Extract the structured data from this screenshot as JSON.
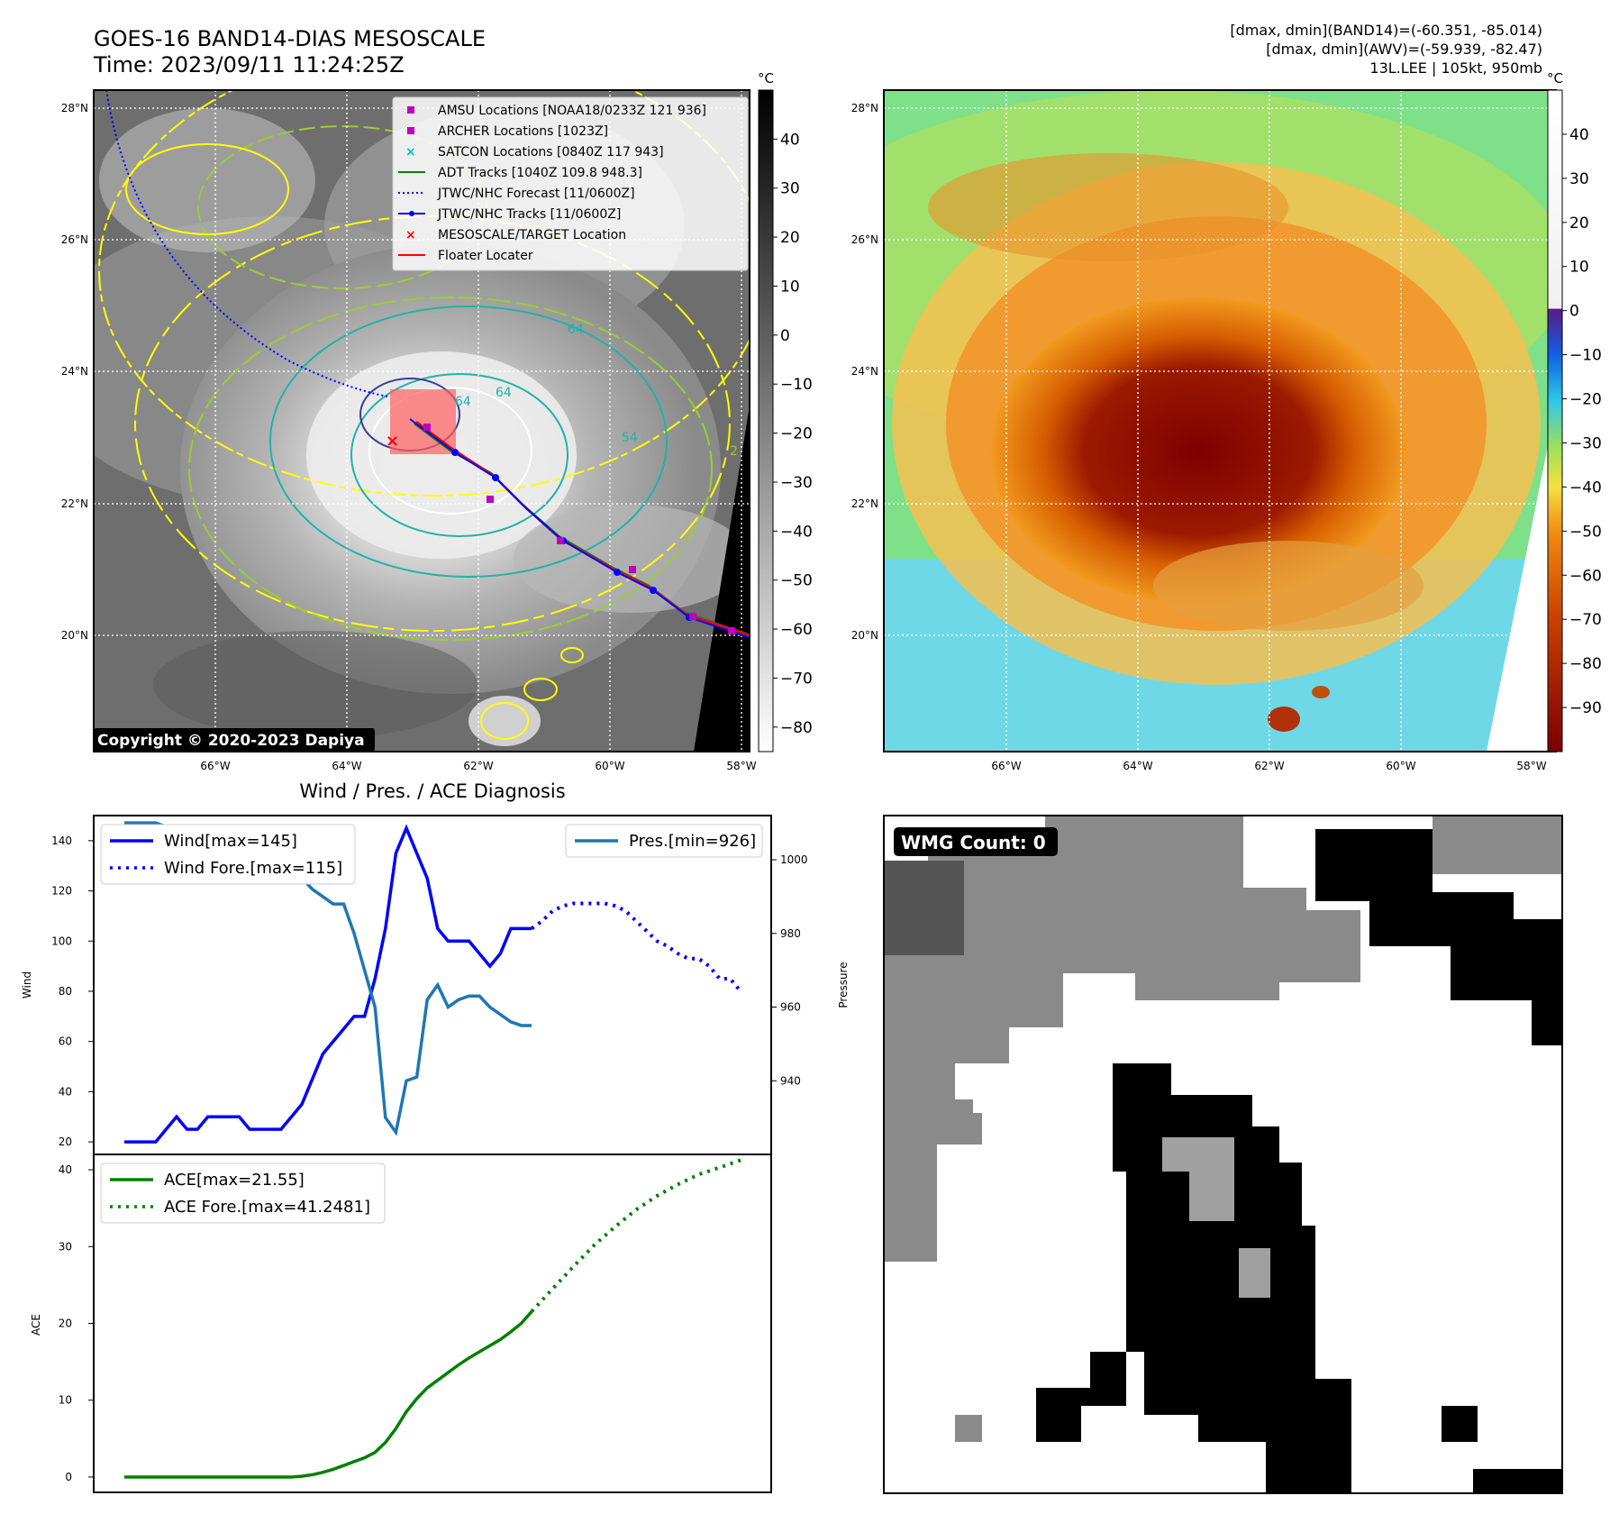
{
  "header": {
    "title_line1": "GOES-16 BAND14-DIAS MESOSCALE",
    "title_line2": "Time: 2023/09/11 11:24:25Z",
    "info_line1": "[dmax, dmin](BAND14)=(-60.351, -85.014)",
    "info_line2": "[dmax, dmin](AWV)=(-59.939, -82.47)",
    "info_line3": "13L.LEE | 105kt, 950mb"
  },
  "maps": {
    "lat_labels": [
      "28°N",
      "26°N",
      "24°N",
      "22°N",
      "20°N"
    ],
    "lon_labels": [
      "66°W",
      "64°W",
      "62°W",
      "60°W",
      "58°W"
    ],
    "copyright": "Copyright © 2020-2023 Dapiya",
    "contour_labels": [
      "64",
      "64",
      "64",
      "54",
      "2"
    ]
  },
  "legend": {
    "items": [
      {
        "label": "AMSU Locations [NOAA18/0233Z 121 936]",
        "color": "#bf00bf",
        "kind": "square"
      },
      {
        "label": "ARCHER Locations [1023Z]",
        "color": "#bf00bf",
        "kind": "square"
      },
      {
        "label": "SATCON Locations [0840Z 117 943]",
        "color": "#00bfbf",
        "kind": "x"
      },
      {
        "label": "ADT Tracks [1040Z 109.8 948.3]",
        "color": "#008000",
        "kind": "line"
      },
      {
        "label": "JTWC/NHC Forecast [11/0600Z]",
        "color": "#0000ff",
        "kind": "dotted"
      },
      {
        "label": "JTWC/NHC Tracks [11/0600Z]",
        "color": "#0000ff",
        "kind": "line-dot"
      },
      {
        "label": "MESOSCALE/TARGET Location",
        "color": "#ff0000",
        "kind": "x"
      },
      {
        "label": "Floater Locater",
        "color": "#ff0000",
        "kind": "line"
      }
    ]
  },
  "colorbar_gray": {
    "unit": "°C",
    "ticks": [
      40,
      30,
      20,
      10,
      0,
      -10,
      -20,
      -30,
      -40,
      -50,
      -60,
      -70,
      -80
    ],
    "range": [
      -85,
      50
    ]
  },
  "colorbar_color": {
    "unit": "°C",
    "ticks": [
      40,
      30,
      20,
      10,
      0,
      -10,
      -20,
      -30,
      -40,
      -50,
      -60,
      -70,
      -80,
      -90
    ],
    "range": [
      -100,
      50
    ]
  },
  "wmg": {
    "label": "WMG Count: 0"
  },
  "chart_data": [
    {
      "type": "line",
      "title": "Wind / Pres. / ACE Diagnosis",
      "ylabel": "Wind",
      "y2label": "Pressure",
      "ylim": [
        15,
        150
      ],
      "y2lim": [
        920,
        1012
      ],
      "yticks": [
        20,
        40,
        60,
        80,
        100,
        120,
        140
      ],
      "y2ticks": [
        940,
        960,
        980,
        1000
      ],
      "legend_left": [
        "Wind[max=145]",
        "Wind Fore.[max=115]"
      ],
      "legend_right": [
        "Pres.[min=926]"
      ],
      "series": [
        {
          "name": "Wind[max=145]",
          "color": "#0000ff",
          "style": "solid",
          "x": [
            0,
            1,
            2,
            3,
            4,
            5,
            6,
            7,
            8,
            9,
            10,
            11,
            12,
            13,
            14,
            15,
            16,
            17,
            18,
            19,
            20,
            21,
            22,
            23,
            24,
            25,
            26,
            27,
            28,
            29,
            30,
            31,
            32,
            33,
            34,
            35,
            36,
            37,
            38,
            39
          ],
          "y": [
            20,
            20,
            20,
            20,
            25,
            30,
            25,
            25,
            30,
            30,
            30,
            30,
            25,
            25,
            25,
            25,
            30,
            35,
            45,
            55,
            60,
            65,
            70,
            70,
            85,
            105,
            135,
            145,
            135,
            125,
            105,
            100,
            100,
            100,
            95,
            90,
            95,
            105,
            105,
            105
          ]
        },
        {
          "name": "Wind Fore.[max=115]",
          "color": "#0000ff",
          "style": "dotted",
          "x": [
            39,
            40,
            41,
            42,
            43,
            44,
            45,
            46,
            47,
            48,
            49,
            50,
            51,
            52,
            53,
            54,
            55,
            56,
            57,
            58,
            59
          ],
          "y": [
            105,
            108,
            112,
            114,
            115,
            115,
            115,
            115,
            114,
            112,
            108,
            104,
            100,
            98,
            95,
            93,
            93,
            90,
            85,
            85,
            80
          ]
        },
        {
          "name": "Pres.[min=926]",
          "color": "#1f77b4",
          "style": "solid",
          "axis": "right",
          "x": [
            0,
            1,
            2,
            3,
            4,
            5,
            6,
            7,
            8,
            9,
            10,
            11,
            12,
            13,
            14,
            15,
            16,
            17,
            18,
            19,
            20,
            21,
            22,
            23,
            24,
            25,
            26,
            27,
            28,
            29,
            30,
            31,
            32,
            33,
            34,
            35,
            36,
            37,
            38,
            39
          ],
          "y": [
            1010,
            1010,
            1010,
            1010,
            1009,
            1009,
            1009,
            1009,
            1009,
            1009,
            1009,
            1009,
            1008,
            1007,
            1006,
            1004,
            1000,
            995,
            992,
            990,
            988,
            988,
            980,
            970,
            960,
            930,
            926,
            940,
            941,
            962,
            966,
            960,
            962,
            963,
            963,
            960,
            958,
            956,
            955,
            955
          ]
        }
      ]
    },
    {
      "type": "line",
      "ylabel": "ACE",
      "ylim": [
        -2,
        42
      ],
      "yticks": [
        0,
        10,
        20,
        30,
        40
      ],
      "legend": [
        "ACE[max=21.55]",
        "ACE Fore.[max=41.2481]"
      ],
      "series": [
        {
          "name": "ACE[max=21.55]",
          "color": "#008000",
          "style": "solid",
          "x": [
            0,
            4,
            8,
            12,
            16,
            17,
            18,
            19,
            20,
            21,
            22,
            23,
            24,
            25,
            26,
            27,
            28,
            29,
            30,
            31,
            32,
            33,
            34,
            35,
            36,
            37,
            38,
            39
          ],
          "y": [
            0,
            0,
            0,
            0,
            0,
            0.1,
            0.3,
            0.6,
            1.0,
            1.5,
            2.0,
            2.5,
            3.2,
            4.5,
            6.3,
            8.5,
            10.2,
            11.6,
            12.6,
            13.6,
            14.6,
            15.5,
            16.3,
            17.1,
            17.9,
            18.9,
            20.0,
            21.55
          ]
        },
        {
          "name": "ACE Fore.[max=41.2481]",
          "color": "#008000",
          "style": "dotted",
          "x": [
            39,
            41,
            43,
            45,
            47,
            49,
            51,
            53,
            55,
            57,
            59
          ],
          "y": [
            21.55,
            24.5,
            27.4,
            30.2,
            32.6,
            34.8,
            36.6,
            38.1,
            39.4,
            40.3,
            41.25
          ]
        }
      ]
    }
  ]
}
